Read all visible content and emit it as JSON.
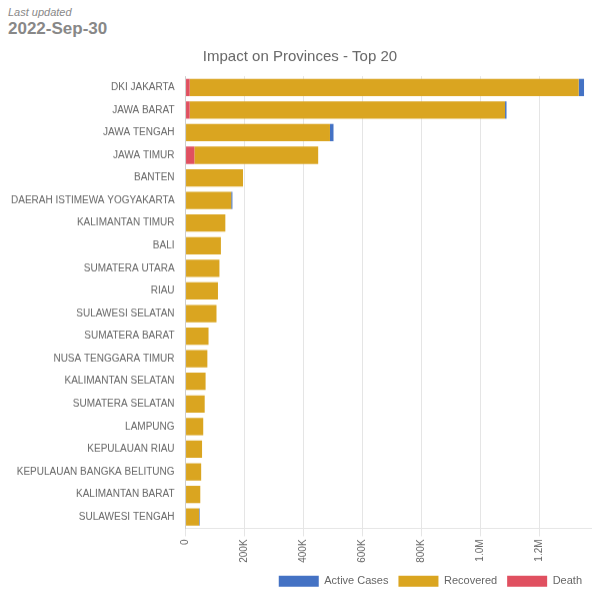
{
  "chart_data": {
    "type": "bar",
    "orientation": "horizontal",
    "stacked": true,
    "title": "Impact on Provinces - Top 20",
    "annotations": [
      "Last updated",
      "2022-Sep-30"
    ],
    "categories": [
      "DKI JAKARTA",
      "JAWA BARAT",
      "JAWA TENGAH",
      "JAWA TIMUR",
      "BANTEN",
      "DAERAH ISTIMEWA YOGYAKARTA",
      "KALIMANTAN TIMUR",
      "BALI",
      "SUMATERA UTARA",
      "RIAU",
      "SULAWESI SELATAN",
      "SUMATERA BARAT",
      "NUSA TENGGARA TIMUR",
      "KALIMANTAN SELATAN",
      "SUMATERA SELATAN",
      "LAMPUNG",
      "KEPULAUAN RIAU",
      "KEPULAUAN BANGKA BELITUNG",
      "KALIMANTAN BARAT",
      "SULAWESI TENGAH"
    ],
    "series": [
      {
        "name": "Death",
        "color": "#E05060",
        "values": [
          14000,
          14000,
          0,
          30000,
          0,
          0,
          0,
          0,
          0,
          0,
          0,
          0,
          0,
          0,
          0,
          0,
          0,
          0,
          0,
          0
        ]
      },
      {
        "name": "Recovered",
        "color": "#DAA520",
        "values": [
          1320000,
          1070000,
          490000,
          420000,
          195000,
          155000,
          135000,
          120000,
          115000,
          110000,
          105000,
          78000,
          74000,
          68000,
          65000,
          60000,
          56000,
          53000,
          50000,
          46000
        ]
      },
      {
        "name": "Active Cases",
        "color": "#4472C4",
        "values": [
          18000,
          5000,
          12000,
          0,
          0,
          4000,
          0,
          0,
          0,
          0,
          0,
          0,
          0,
          0,
          0,
          0,
          0,
          0,
          0,
          2000
        ]
      }
    ],
    "xlim": [
      0,
      1379040
    ],
    "xticks": [
      0,
      {
        "value": 200000,
        "label": "200K"
      },
      {
        "value": 400000,
        "label": "400K"
      },
      {
        "value": 600000,
        "label": "600K"
      },
      {
        "value": 800000,
        "label": "800K"
      },
      {
        "value": 1000000,
        "label": "1.0M"
      },
      {
        "value": 1200000,
        "label": "1.2M"
      }
    ],
    "grid": true,
    "legend": "lower right"
  }
}
